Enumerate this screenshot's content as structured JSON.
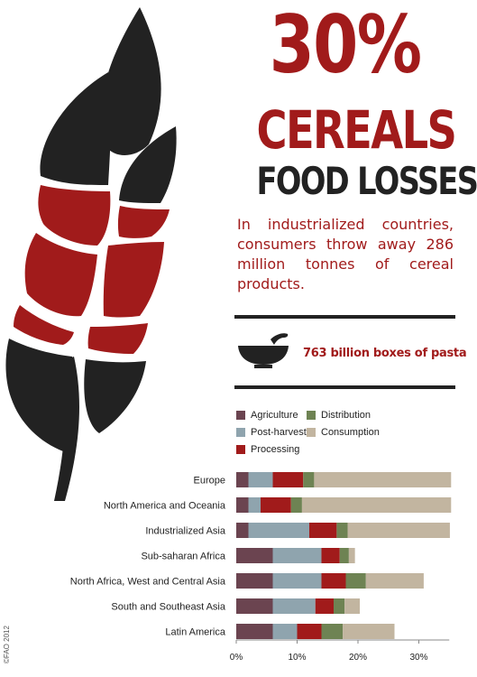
{
  "headline": {
    "percent": "30%",
    "subject": "CEREALS",
    "topic": "FOOD LOSSES"
  },
  "intro": "In industrialized countries, consumers throw away 286 million tonnes of cereal products.",
  "callout": {
    "icon": "bowl-icon",
    "text": "763 billion boxes of pasta"
  },
  "credit": "©FAO 2012",
  "colors": {
    "red": "#a11b1b",
    "dark": "#222222"
  },
  "chart_data": {
    "type": "bar",
    "orientation": "horizontal",
    "stacked": true,
    "categories": [
      "Europe",
      "North America and Oceania",
      "Industrialized Asia",
      "Sub-saharan Africa",
      "North Africa, West and Central Asia",
      "South and Southeast Asia",
      "Latin America"
    ],
    "series": [
      {
        "name": "Agriculture",
        "color": "#6b4450",
        "values": [
          2,
          2,
          2,
          6,
          6,
          6,
          6
        ]
      },
      {
        "name": "Post-harvest",
        "color": "#8fa4ae",
        "values": [
          4,
          2,
          10,
          8,
          8,
          7,
          4
        ]
      },
      {
        "name": "Processing",
        "color": "#a11b1b",
        "values": [
          5,
          5,
          4.5,
          3,
          4,
          3,
          4
        ]
      },
      {
        "name": "Distribution",
        "color": "#6e8353",
        "values": [
          1.8,
          1.8,
          1.8,
          1.5,
          3.3,
          1.8,
          3.5
        ]
      },
      {
        "name": "Consumption",
        "color": "#c2b5a0",
        "values": [
          22.5,
          24.5,
          16.8,
          1,
          9.5,
          2.5,
          8.5
        ]
      }
    ],
    "x_ticks": [
      "0%",
      "10%",
      "20%",
      "30%"
    ],
    "xlim": [
      0,
      35
    ],
    "legend_placement": "top-left",
    "grid": false
  }
}
